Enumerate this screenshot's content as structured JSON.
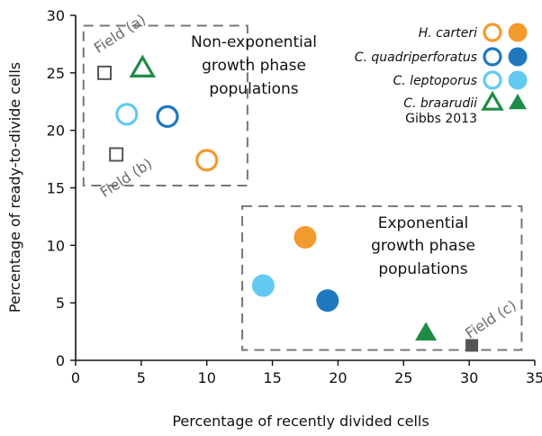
{
  "chart_data": {
    "type": "scatter",
    "title": "",
    "xlabel": "Percentage of recently divided cells",
    "ylabel": "Percentage of ready-to-divide cells",
    "xlim": [
      0,
      35
    ],
    "ylim": [
      0,
      30
    ],
    "x_ticks": [
      0,
      5,
      10,
      15,
      20,
      25,
      30,
      35
    ],
    "y_ticks": [
      0,
      5,
      10,
      15,
      20,
      25,
      30
    ],
    "grid": false,
    "legend_position": "top-right",
    "series": [
      {
        "name": "H. carteri",
        "color": "#f39a2e",
        "symbol": "circle",
        "open_points": [
          {
            "x": 10.0,
            "y": 17.4
          }
        ],
        "filled_points": [
          {
            "x": 17.5,
            "y": 10.7
          }
        ]
      },
      {
        "name": "C. quadriperforatus",
        "color": "#1f78be",
        "symbol": "circle",
        "open_points": [
          {
            "x": 7.0,
            "y": 21.2
          }
        ],
        "filled_points": [
          {
            "x": 19.2,
            "y": 5.2
          }
        ]
      },
      {
        "name": "C. leptoporus",
        "color": "#63c9f0",
        "symbol": "circle",
        "open_points": [
          {
            "x": 3.9,
            "y": 21.4
          }
        ],
        "filled_points": [
          {
            "x": 14.3,
            "y": 6.5
          }
        ]
      },
      {
        "name": "C. braarudii",
        "color": "#1f8c45",
        "symbol": "triangle",
        "open_points": [
          {
            "x": 5.1,
            "y": 25.4
          }
        ],
        "filled_points": [
          {
            "x": 26.7,
            "y": 2.4
          }
        ]
      },
      {
        "name": "Gibbs 2013",
        "color": "#555555",
        "symbol": "square",
        "open_points": [
          {
            "x": 2.2,
            "y": 25.0
          },
          {
            "x": 3.1,
            "y": 17.9
          }
        ],
        "filled_points": [
          {
            "x": 30.2,
            "y": 1.3
          }
        ]
      }
    ],
    "annotations": {
      "field_a": "Field (a)",
      "field_b": "Field (b)",
      "field_c": "Field (c)",
      "nonexp_lines": [
        "Non-exponential",
        "growth phase",
        "populations"
      ],
      "exp_lines": [
        "Exponential",
        "growth phase",
        "populations"
      ]
    },
    "regions": [
      {
        "name": "non-exponential",
        "x": [
          0.6,
          13.1
        ],
        "y": [
          15.2,
          29.1
        ]
      },
      {
        "name": "exponential",
        "x": [
          12.7,
          34.0
        ],
        "y": [
          0.9,
          13.4
        ]
      }
    ]
  }
}
